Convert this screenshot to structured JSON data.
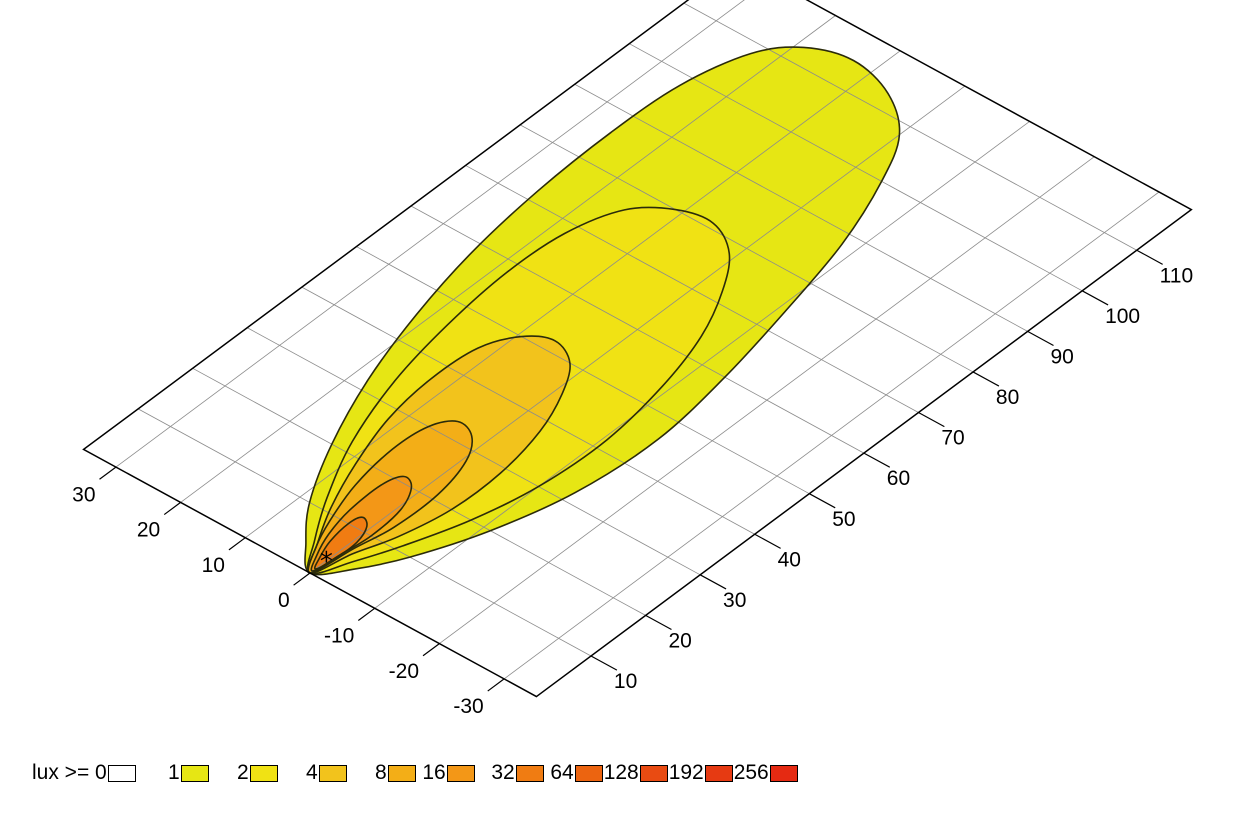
{
  "chart_data": {
    "type": "heatmap",
    "subtype": "isolux contour plot on 3D perspective grid",
    "title": "",
    "xlabel": "",
    "ylabel": "",
    "x_axis": {
      "ticks": [
        10,
        20,
        30,
        40,
        50,
        60,
        70,
        80,
        90,
        100,
        110
      ],
      "range": [
        0,
        120
      ]
    },
    "y_axis": {
      "ticks": [
        30,
        20,
        10,
        0,
        -10,
        -20,
        -30
      ],
      "range": [
        -35,
        35
      ]
    },
    "grid": true,
    "legend_position": "bottom",
    "legend": {
      "prefix": "lux >= 0",
      "levels": [
        {
          "label": "1",
          "color": "#e6e614"
        },
        {
          "label": "2",
          "color": "#f0e214"
        },
        {
          "label": "4",
          "color": "#f2c31c"
        },
        {
          "label": "8",
          "color": "#f3ae17"
        },
        {
          "label": "16",
          "color": "#f39717"
        },
        {
          "label": "32",
          "color": "#f07c12"
        },
        {
          "label": "64",
          "color": "#ec6410"
        },
        {
          "label": "128",
          "color": "#e94b12"
        },
        {
          "label": "192",
          "color": "#e63a12"
        },
        {
          "label": "256",
          "color": "#e52a12"
        }
      ]
    },
    "zero_color": "#ffffff",
    "source_marker": {
      "x": 3,
      "y": 0,
      "symbol": "*"
    },
    "contours": [
      {
        "level": 1,
        "fill": "#e6e614",
        "points": [
          [
            0,
            0
          ],
          [
            4,
            4
          ],
          [
            10,
            8.5
          ],
          [
            20,
            13.5
          ],
          [
            32,
            18
          ],
          [
            45,
            21.5
          ],
          [
            58,
            24
          ],
          [
            72,
            25.5
          ],
          [
            86,
            26
          ],
          [
            98,
            25.5
          ],
          [
            108,
            23
          ],
          [
            113,
            19
          ],
          [
            115,
            13
          ],
          [
            113,
            6
          ],
          [
            108,
            0
          ],
          [
            100,
            -4
          ],
          [
            88,
            -8
          ],
          [
            74,
            -11
          ],
          [
            60,
            -13.5
          ],
          [
            46,
            -15
          ],
          [
            32,
            -14
          ],
          [
            20,
            -11
          ],
          [
            10,
            -7
          ],
          [
            4,
            -3.5
          ]
        ]
      },
      {
        "level": 2,
        "fill": "#f0e214",
        "points": [
          [
            0,
            0
          ],
          [
            5,
            3.5
          ],
          [
            12,
            7.5
          ],
          [
            22,
            12
          ],
          [
            34,
            15.5
          ],
          [
            46,
            17.5
          ],
          [
            58,
            18.5
          ],
          [
            68,
            18
          ],
          [
            76,
            15.5
          ],
          [
            80,
            11
          ],
          [
            81,
            6
          ],
          [
            78,
            1
          ],
          [
            72,
            -3
          ],
          [
            64,
            -6.5
          ],
          [
            54,
            -9
          ],
          [
            42,
            -10.5
          ],
          [
            30,
            -10
          ],
          [
            20,
            -8
          ],
          [
            11,
            -5
          ],
          [
            5,
            -2.5
          ]
        ]
      },
      {
        "level": 4,
        "fill": "#f2c31c",
        "points": [
          [
            0,
            0
          ],
          [
            5,
            3
          ],
          [
            11,
            6
          ],
          [
            19,
            9
          ],
          [
            28,
            11.5
          ],
          [
            37,
            12.5
          ],
          [
            45,
            12
          ],
          [
            50,
            9.5
          ],
          [
            52,
            6
          ],
          [
            50,
            2
          ],
          [
            45,
            -1
          ],
          [
            38,
            -3.5
          ],
          [
            29,
            -5
          ],
          [
            20,
            -5
          ],
          [
            12,
            -3.5
          ],
          [
            6,
            -1.5
          ]
        ]
      },
      {
        "level": 8,
        "fill": "#f3ae17",
        "points": [
          [
            0,
            0
          ],
          [
            4,
            2.5
          ],
          [
            9,
            4.5
          ],
          [
            16,
            6.5
          ],
          [
            24,
            7.5
          ],
          [
            30,
            7
          ],
          [
            33,
            5
          ],
          [
            32,
            2
          ],
          [
            28,
            -0.5
          ],
          [
            21,
            -2
          ],
          [
            13,
            -2
          ],
          [
            7,
            -1
          ]
        ]
      },
      {
        "level": 16,
        "fill": "#f39717",
        "points": [
          [
            0.5,
            0
          ],
          [
            3,
            1.5
          ],
          [
            7,
            3
          ],
          [
            12,
            4
          ],
          [
            18,
            4.2
          ],
          [
            21,
            3.2
          ],
          [
            20,
            1.2
          ],
          [
            16,
            -0.5
          ],
          [
            10,
            -1
          ],
          [
            5,
            -0.5
          ]
        ]
      },
      {
        "level": 32,
        "fill": "#f07c12",
        "points": [
          [
            1,
            0
          ],
          [
            3,
            1
          ],
          [
            6,
            2
          ],
          [
            10,
            2.5
          ],
          [
            12,
            2
          ],
          [
            11,
            0.5
          ],
          [
            8,
            -0.5
          ],
          [
            4,
            -0.5
          ]
        ]
      }
    ]
  }
}
